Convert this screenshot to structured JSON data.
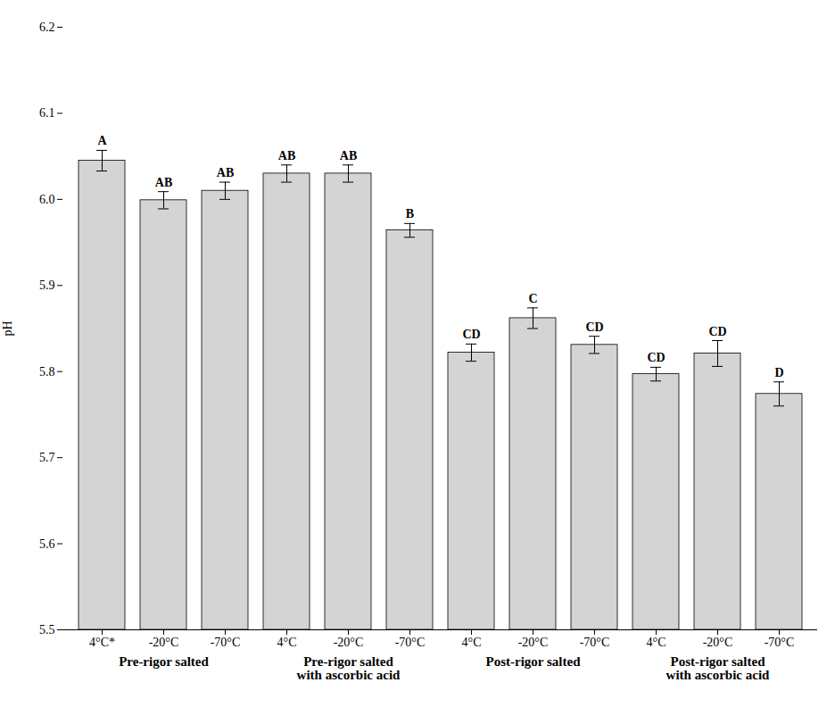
{
  "chart_data": {
    "type": "bar",
    "categories": [
      "4°C*",
      "-20°C",
      "-70°C",
      "4°C",
      "-20°C",
      "-70°C",
      "4°C",
      "-20°C",
      "-70°C",
      "4°C",
      "-20°C",
      "-70°C"
    ],
    "values": [
      6.045,
      5.999,
      6.01,
      6.03,
      6.03,
      5.964,
      5.822,
      5.862,
      5.831,
      5.797,
      5.821,
      5.774
    ],
    "errors": [
      0.012,
      0.01,
      0.01,
      0.01,
      0.01,
      0.008,
      0.01,
      0.012,
      0.01,
      0.008,
      0.015,
      0.014
    ],
    "annotations": [
      "A",
      "AB",
      "AB",
      "AB",
      "AB",
      "B",
      "CD",
      "C",
      "CD",
      "CD",
      "CD",
      "D"
    ],
    "groups": [
      "Pre-rigor salted",
      "Pre-rigor salted\nwith ascorbic acid",
      "Post-rigor salted",
      "Post-rigor salted\nwith ascorbic acid"
    ],
    "color": "#d4d4d4",
    "ylabel": "pH",
    "ylim": [
      5.5,
      6.2
    ],
    "yticks": [
      5.5,
      5.6,
      5.7,
      5.8,
      5.9,
      {
        "value": 6,
        "label": "6.0"
      },
      6.1,
      6.2
    ]
  }
}
